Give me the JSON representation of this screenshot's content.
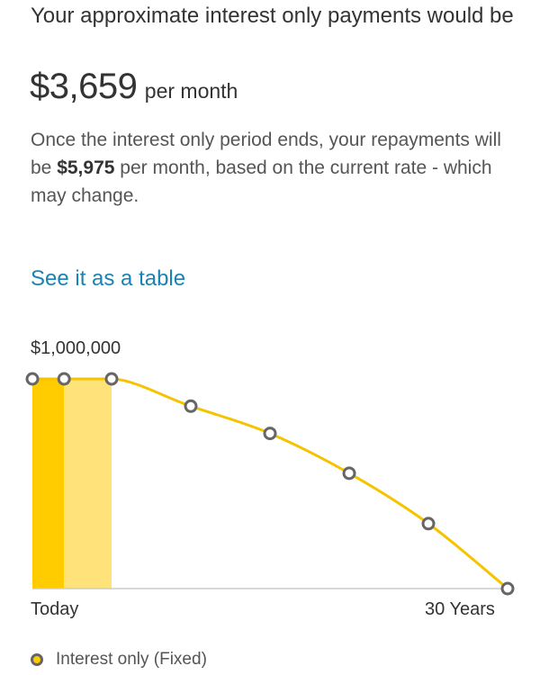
{
  "summary": {
    "headline": "Your approximate interest only payments would be",
    "amount": "$3,659",
    "amount_suffix": "per month",
    "desc_prefix": "Once the interest only period ends, your repayments will be",
    "desc_amount": "$5,975",
    "desc_suffix": "per month, based on the current rate - which may change."
  },
  "table_link": "See it as a table",
  "chart_data": {
    "type": "line",
    "title": "",
    "xlabel": "",
    "ylabel": "",
    "y_max_label": "$1,000,000",
    "xlim": [
      0,
      30
    ],
    "ylim": [
      0,
      1000000
    ],
    "x_tick_labels": {
      "start": "Today",
      "end": "30 Years"
    },
    "series": [
      {
        "name": "Interest only (Fixed)",
        "color": "#f5c400",
        "points": [
          {
            "x": 0,
            "y": 1000000
          },
          {
            "x": 2,
            "y": 1000000
          },
          {
            "x": 5,
            "y": 1000000
          },
          {
            "x": 10,
            "y": 870000
          },
          {
            "x": 15,
            "y": 740000
          },
          {
            "x": 20,
            "y": 550000
          },
          {
            "x": 25,
            "y": 310000
          },
          {
            "x": 30,
            "y": 0
          }
        ]
      }
    ],
    "shaded_periods": [
      {
        "from": 0,
        "to": 2,
        "color": "#ffcc00"
      },
      {
        "from": 2,
        "to": 5,
        "color": "#ffe27a"
      }
    ],
    "legend": "bottom-left",
    "grid": false
  }
}
